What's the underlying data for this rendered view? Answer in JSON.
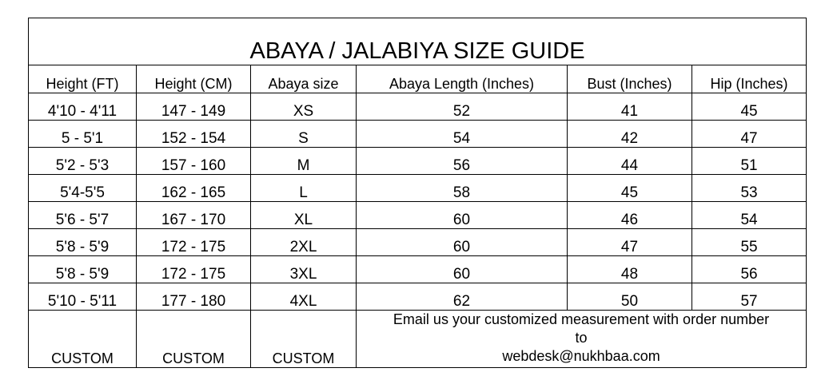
{
  "title": "ABAYA / JALABIYA SIZE GUIDE",
  "headers": [
    "Height (FT)",
    "Height (CM)",
    "Abaya size",
    "Abaya Length (Inches)",
    "Bust (Inches)",
    "Hip (Inches)"
  ],
  "rows": [
    [
      "4'10 - 4'11",
      "147 - 149",
      "XS",
      "52",
      "41",
      "45"
    ],
    [
      "5 - 5'1",
      "152 - 154",
      "S",
      "54",
      "42",
      "47"
    ],
    [
      "5'2 - 5'3",
      "157 - 160",
      "M",
      "56",
      "44",
      "51"
    ],
    [
      "5'4-5'5",
      "162 - 165",
      "L",
      "58",
      "45",
      "53"
    ],
    [
      "5'6 - 5'7",
      "167 - 170",
      "XL",
      "60",
      "46",
      "54"
    ],
    [
      "5'8 - 5'9",
      "172 - 175",
      "2XL",
      "60",
      "47",
      "55"
    ],
    [
      "5'8 - 5'9",
      "172 - 175",
      "3XL",
      "60",
      "48",
      "56"
    ],
    [
      "5'10 - 5'11",
      "177 - 180",
      "4XL",
      "62",
      "50",
      "57"
    ]
  ],
  "custom": {
    "cells": [
      "CUSTOM",
      "CUSTOM",
      "CUSTOM"
    ],
    "note_line1": "Email us your customized measurement with order number",
    "note_line2": "to",
    "email": "webdesk@nukhbaa.com"
  }
}
